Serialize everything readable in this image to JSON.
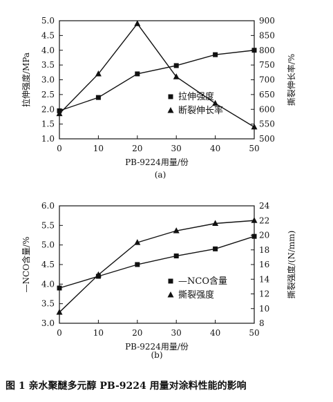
{
  "figure_caption": "图 1   亲水聚醚多元醇 PB-9224 用量对涂料性能的影响",
  "chart_data": [
    {
      "type": "line",
      "panel_label": "(a)",
      "xlabel": "PB-9224用量/份",
      "x": [
        0,
        10,
        20,
        30,
        40,
        50
      ],
      "x_ticks": [
        "0",
        "10",
        "20",
        "30",
        "40",
        "50"
      ],
      "left_axis": {
        "label": "拉伸强度/MPa",
        "lim": [
          1.0,
          5.0
        ],
        "ticks": [
          "1.0",
          "1.5",
          "2.0",
          "2.5",
          "3.0",
          "3.5",
          "4.0",
          "4.5",
          "5.0"
        ]
      },
      "right_axis": {
        "label": "撕裂伸长率/%",
        "lim": [
          500,
          900
        ],
        "ticks": [
          "500",
          "550",
          "600",
          "650",
          "700",
          "750",
          "800",
          "850",
          "900"
        ]
      },
      "series": [
        {
          "name": "拉伸强度",
          "axis": "left",
          "marker": "square",
          "values": [
            1.95,
            2.4,
            3.2,
            3.48,
            3.85,
            4.0
          ]
        },
        {
          "name": "断裂伸长率",
          "axis": "right",
          "marker": "triangle",
          "values": [
            585,
            720,
            890,
            710,
            620,
            540
          ]
        }
      ],
      "legend_position": "center-right",
      "grid": false
    },
    {
      "type": "line",
      "panel_label": "(b)",
      "xlabel": "PB-9224用量/份",
      "x": [
        0,
        10,
        20,
        30,
        40,
        50
      ],
      "x_ticks": [
        "0",
        "10",
        "20",
        "30",
        "40",
        "50"
      ],
      "left_axis": {
        "label": "—NCO含量/%",
        "lim": [
          3.0,
          6.0
        ],
        "ticks": [
          "3.0",
          "3.5",
          "4.0",
          "4.5",
          "5.0",
          "5.5",
          "6.0"
        ]
      },
      "right_axis": {
        "label": "撕裂强度/(N/mm)",
        "lim": [
          8,
          24
        ],
        "ticks": [
          "8",
          "10",
          "12",
          "14",
          "16",
          "18",
          "20",
          "22",
          "24"
        ]
      },
      "series": [
        {
          "name": "—NCO含量",
          "axis": "left",
          "marker": "square",
          "values": [
            3.9,
            4.2,
            4.5,
            4.72,
            4.9,
            5.22
          ]
        },
        {
          "name": "撕裂强度",
          "axis": "right",
          "marker": "triangle",
          "values": [
            9.5,
            14.6,
            19.0,
            20.6,
            21.6,
            22.0
          ]
        }
      ],
      "legend_position": "center-right",
      "grid": false
    }
  ]
}
